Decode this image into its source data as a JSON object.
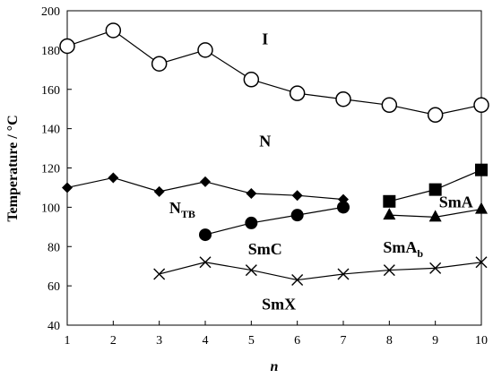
{
  "chart_data": {
    "type": "line",
    "xlabel": "n",
    "ylabel": "Temperature / °C",
    "xlim": [
      1,
      10
    ],
    "ylim": [
      40,
      200
    ],
    "x_ticks": [
      1,
      2,
      3,
      4,
      5,
      6,
      7,
      8,
      9,
      10
    ],
    "y_ticks": [
      40,
      60,
      80,
      100,
      120,
      140,
      160,
      180,
      200
    ],
    "grid": false,
    "series": [
      {
        "marker": "open-circle",
        "color": "#000000",
        "points": [
          [
            1,
            182
          ],
          [
            2,
            190
          ],
          [
            3,
            173
          ],
          [
            4,
            180
          ],
          [
            5,
            165
          ],
          [
            6,
            158
          ],
          [
            7,
            155
          ],
          [
            8,
            152
          ],
          [
            9,
            147
          ],
          [
            10,
            152
          ]
        ]
      },
      {
        "marker": "filled-diamond",
        "color": "#000000",
        "points": [
          [
            1,
            110
          ],
          [
            2,
            115
          ],
          [
            3,
            108
          ],
          [
            4,
            113
          ],
          [
            5,
            107
          ],
          [
            6,
            106
          ],
          [
            7,
            104
          ]
        ]
      },
      {
        "marker": "filled-circle",
        "color": "#000000",
        "points": [
          [
            4,
            86
          ],
          [
            5,
            92
          ],
          [
            6,
            96
          ],
          [
            7,
            100
          ]
        ]
      },
      {
        "marker": "filled-square",
        "color": "#000000",
        "points": [
          [
            8,
            103
          ],
          [
            9,
            109
          ],
          [
            10,
            119
          ]
        ]
      },
      {
        "marker": "filled-triangle",
        "color": "#000000",
        "points": [
          [
            8,
            96
          ],
          [
            9,
            95
          ],
          [
            10,
            99
          ]
        ]
      },
      {
        "marker": "cross",
        "color": "#000000",
        "points": [
          [
            3,
            66
          ],
          [
            4,
            72
          ],
          [
            5,
            68
          ],
          [
            6,
            63
          ],
          [
            7,
            66
          ],
          [
            8,
            68
          ],
          [
            9,
            69
          ],
          [
            10,
            72
          ]
        ]
      }
    ],
    "annotations": [
      {
        "text": "I",
        "sub": "",
        "x": 5.3,
        "y": 183
      },
      {
        "text": "N",
        "sub": "",
        "x": 5.3,
        "y": 131
      },
      {
        "text": "N",
        "sub": "TB",
        "x": 3.5,
        "y": 97
      },
      {
        "text": "SmC",
        "sub": "",
        "x": 5.3,
        "y": 76
      },
      {
        "text": "SmA",
        "sub": "",
        "x": 9.45,
        "y": 100
      },
      {
        "text": "SmA",
        "sub": "b",
        "x": 8.3,
        "y": 77
      },
      {
        "text": "SmX",
        "sub": "",
        "x": 5.6,
        "y": 48
      }
    ]
  }
}
